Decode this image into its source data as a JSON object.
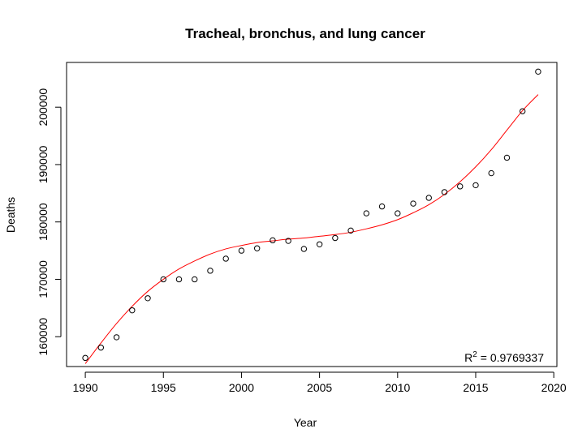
{
  "chart_data": {
    "type": "scatter",
    "title": "Tracheal, bronchus, and lung cancer",
    "xlabel": "Year",
    "ylabel": "Deaths",
    "xlim": [
      1988.8,
      2020.2
    ],
    "ylim": [
      154800,
      207800
    ],
    "xticks": [
      1990,
      1995,
      2000,
      2005,
      2010,
      2015,
      2020
    ],
    "yticks": [
      160000,
      170000,
      180000,
      190000,
      200000
    ],
    "grid": false,
    "series": [
      {
        "kind": "points",
        "color": "#000000",
        "x": [
          1990,
          1991,
          1992,
          1993,
          1994,
          1995,
          1996,
          1997,
          1998,
          1999,
          2000,
          2001,
          2002,
          2003,
          2004,
          2005,
          2006,
          2007,
          2008,
          2009,
          2010,
          2011,
          2012,
          2013,
          2014,
          2015,
          2016,
          2017,
          2018,
          2019
        ],
        "y": [
          156300,
          158100,
          159900,
          164600,
          166700,
          170000,
          170000,
          170000,
          171500,
          173600,
          175000,
          175400,
          176800,
          176700,
          175300,
          176100,
          177200,
          178500,
          181500,
          182700,
          181500,
          183200,
          184200,
          185200,
          186200,
          186400,
          188500,
          191200,
          199300,
          206200
        ]
      },
      {
        "kind": "fit-curve",
        "color": "#ff0000",
        "x": [
          1990,
          1991,
          1992,
          1993,
          1994,
          1995,
          1996,
          1997,
          1998,
          1999,
          2000,
          2001,
          2002,
          2003,
          2004,
          2005,
          2006,
          2007,
          2008,
          2009,
          2010,
          2011,
          2012,
          2013,
          2014,
          2015,
          2016,
          2017,
          2018,
          2019
        ],
        "y": [
          155300,
          158900,
          162300,
          165300,
          167900,
          170000,
          171800,
          173200,
          174400,
          175300,
          175900,
          176400,
          176700,
          177000,
          177200,
          177500,
          177800,
          178200,
          178800,
          179500,
          180400,
          181600,
          183000,
          184800,
          187000,
          189600,
          192600,
          196000,
          199400,
          202200
        ]
      }
    ],
    "annotation": {
      "text": "R",
      "superscript": "2",
      "rest": " = 0.9769337",
      "position": "bottom-right"
    }
  }
}
